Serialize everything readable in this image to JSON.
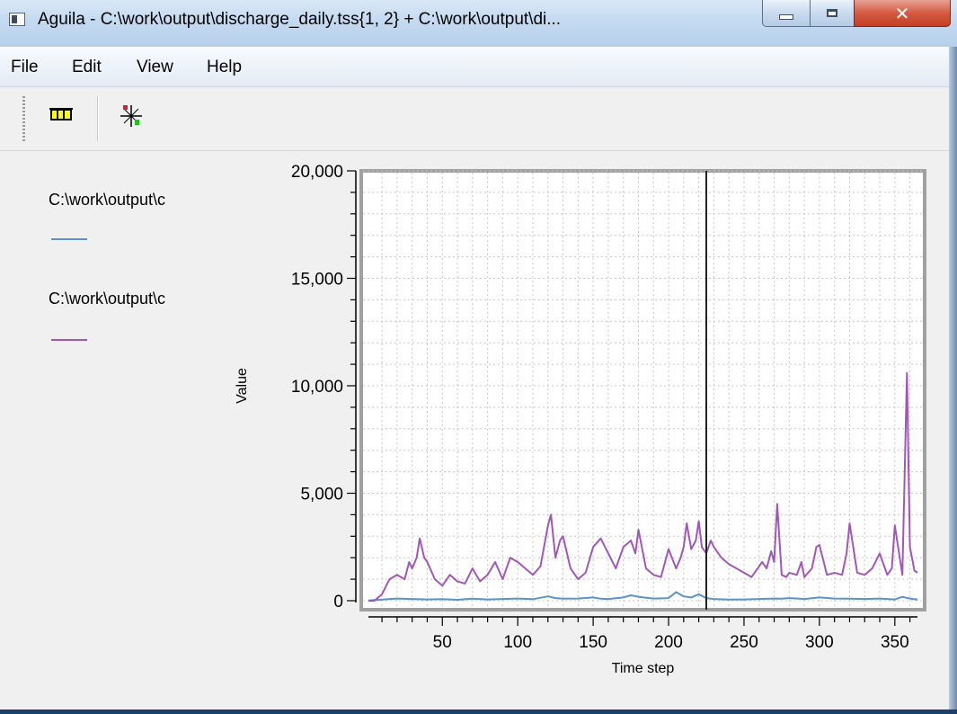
{
  "window": {
    "title": "Aguila - C:\\work\\output\\discharge_daily.tss{1, 2} + C:\\work\\output\\di..."
  },
  "menu": {
    "items": [
      "File",
      "Edit",
      "View",
      "Help"
    ]
  },
  "toolbar": {
    "buttons": [
      "table-icon",
      "cursor-xy-icon"
    ]
  },
  "legend": {
    "entries": [
      {
        "label": "C:\\work\\output\\c",
        "color": "#5b93c7"
      },
      {
        "label": "C:\\work\\output\\c",
        "color": "#a157b8"
      }
    ]
  },
  "chart_data": {
    "type": "line",
    "title": "",
    "xlabel": "Time step",
    "ylabel": "Value",
    "xlim": [
      1,
      365
    ],
    "ylim": [
      0,
      20000
    ],
    "x_ticks": [
      50,
      100,
      150,
      200,
      250,
      300,
      350
    ],
    "y_ticks": [
      0,
      5000,
      10000,
      15000,
      20000
    ],
    "y_tick_labels": [
      "0",
      "5,000",
      "10,000",
      "15,000",
      "20,000"
    ],
    "cursor_x": 225,
    "grid": true,
    "legend": "left",
    "series": [
      {
        "color": "#5b93c7",
        "x": [
          1,
          10,
          20,
          30,
          40,
          50,
          60,
          70,
          80,
          90,
          100,
          110,
          120,
          125,
          130,
          140,
          150,
          155,
          160,
          170,
          175,
          180,
          190,
          200,
          205,
          210,
          215,
          220,
          225,
          230,
          240,
          250,
          260,
          270,
          275,
          280,
          290,
          300,
          310,
          320,
          330,
          340,
          350,
          355,
          360,
          365
        ],
        "y": [
          10,
          50,
          100,
          80,
          60,
          70,
          40,
          90,
          60,
          80,
          100,
          70,
          200,
          120,
          90,
          100,
          150,
          90,
          80,
          150,
          250,
          180,
          100,
          120,
          400,
          200,
          150,
          300,
          120,
          80,
          50,
          60,
          80,
          100,
          90,
          120,
          80,
          150,
          100,
          90,
          80,
          100,
          60,
          180,
          100,
          50
        ]
      },
      {
        "color": "#a157b8",
        "x": [
          1,
          5,
          10,
          15,
          20,
          25,
          28,
          30,
          33,
          35,
          38,
          40,
          45,
          50,
          55,
          60,
          65,
          70,
          75,
          80,
          85,
          90,
          95,
          100,
          105,
          110,
          115,
          120,
          122,
          125,
          128,
          130,
          135,
          140,
          145,
          150,
          155,
          160,
          165,
          170,
          175,
          178,
          180,
          185,
          190,
          195,
          200,
          205,
          208,
          210,
          212,
          215,
          218,
          220,
          222,
          225,
          228,
          230,
          235,
          240,
          245,
          250,
          255,
          260,
          262,
          265,
          268,
          270,
          272,
          275,
          278,
          280,
          285,
          288,
          290,
          295,
          298,
          300,
          305,
          310,
          315,
          318,
          320,
          325,
          330,
          335,
          340,
          345,
          348,
          350,
          355,
          358,
          360,
          363,
          365
        ],
        "y": [
          0,
          0,
          300,
          1000,
          1200,
          1000,
          1800,
          1500,
          2000,
          2900,
          2000,
          1800,
          1000,
          700,
          1200,
          900,
          800,
          1500,
          900,
          1200,
          1800,
          1000,
          2000,
          1800,
          1500,
          1200,
          1600,
          3500,
          4000,
          2000,
          2800,
          3000,
          1500,
          1000,
          1300,
          2500,
          2900,
          2200,
          1500,
          2500,
          2800,
          2200,
          3300,
          1500,
          1200,
          1100,
          2400,
          1500,
          2000,
          2500,
          3600,
          2400,
          2800,
          3700,
          2500,
          2200,
          2800,
          2500,
          2000,
          1700,
          1500,
          1300,
          1100,
          1600,
          1800,
          1500,
          2300,
          1800,
          4500,
          1200,
          1100,
          1300,
          1200,
          1800,
          1100,
          1500,
          2500,
          2600,
          1200,
          1300,
          1200,
          2200,
          3600,
          1300,
          1200,
          1500,
          2200,
          1200,
          1500,
          3500,
          1200,
          10600,
          2500,
          1400,
          1300
        ]
      }
    ]
  }
}
